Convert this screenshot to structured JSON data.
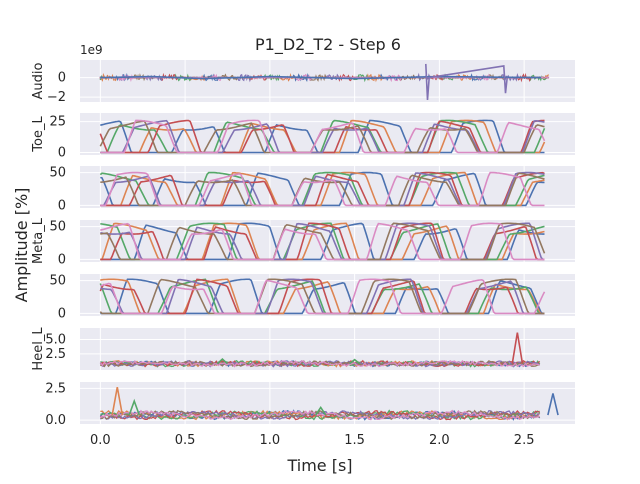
{
  "chart_data": {
    "type": "line",
    "title": "P1_D2_T2 - Step 6",
    "xlabel": "Time [s]",
    "ylabel": "Amplitude [%]",
    "x_ticks": [
      "0.0",
      "0.5",
      "1.0",
      "1.5",
      "2.0",
      "2.5"
    ],
    "xlim": [
      -0.12,
      2.8
    ],
    "grid": true,
    "palette": [
      "#4c72b0",
      "#dd8452",
      "#55a868",
      "#c44e52",
      "#8172b3",
      "#937860",
      "#da8bc3"
    ],
    "panels": [
      {
        "ylabel": "Audio",
        "offset_text": "1e9",
        "y_ticks": [
          0,
          -2
        ],
        "y_tick_labels": [
          "0",
          "−2"
        ],
        "ylim": [
          -2.5,
          1.8
        ],
        "kind": "audio",
        "series": [
          {
            "color": "#4c72b0",
            "values": [
              [
                0.0,
                0
              ],
              [
                0.3,
                0.1
              ],
              [
                0.6,
                -0.1
              ],
              [
                1.0,
                0.1
              ],
              [
                1.5,
                -0.1
              ],
              [
                2.0,
                0.1
              ],
              [
                2.6,
                0
              ]
            ]
          },
          {
            "color": "#8172b3",
            "values": [
              [
                1.92,
                1.4
              ],
              [
                1.93,
                -2.3
              ],
              [
                1.94,
                0
              ],
              [
                2.38,
                1.2
              ],
              [
                2.39,
                -1.6
              ],
              [
                2.4,
                0
              ]
            ]
          }
        ]
      },
      {
        "ylabel": "Toe_L",
        "y_ticks": [
          0,
          25
        ],
        "y_tick_labels": [
          "0",
          "25"
        ],
        "ylim": [
          -2,
          32
        ],
        "kind": "pressure",
        "peak": 26
      },
      {
        "ylabel": "",
        "y_ticks": [
          0,
          50
        ],
        "y_tick_labels": [
          "0",
          "50"
        ],
        "ylim": [
          -4,
          60
        ],
        "kind": "pressure",
        "peak": 50
      },
      {
        "ylabel": "Meta_L",
        "y_ticks": [
          0,
          50
        ],
        "y_tick_labels": [
          "0",
          "50"
        ],
        "ylim": [
          -4,
          60
        ],
        "kind": "pressure",
        "peak": 55
      },
      {
        "ylabel": "",
        "y_ticks": [
          0,
          50
        ],
        "y_tick_labels": [
          "0",
          "50"
        ],
        "ylim": [
          -4,
          60
        ],
        "kind": "pressure",
        "peak": 52
      },
      {
        "ylabel": "Heel_L",
        "y_ticks": [
          2.5,
          5.0
        ],
        "y_tick_labels": [
          "2.5",
          "5.0"
        ],
        "ylim": [
          -0.3,
          7.0
        ],
        "kind": "noise",
        "base": 0.8,
        "spikes": [
          [
            2.46,
            6.2,
            "#c44e52"
          ],
          [
            0.72,
            1.6,
            "#55a868"
          ],
          [
            1.5,
            1.5,
            "#55a868"
          ]
        ]
      },
      {
        "ylabel": "",
        "y_ticks": [
          0.0,
          2.5
        ],
        "y_tick_labels": [
          "0.0",
          "2.5"
        ],
        "ylim": [
          -0.3,
          3.0
        ],
        "kind": "noise",
        "base": 0.4,
        "spikes": [
          [
            0.1,
            2.6,
            "#dd8452"
          ],
          [
            0.2,
            1.5,
            "#55a868"
          ],
          [
            2.67,
            2.1,
            "#4c72b0"
          ],
          [
            1.3,
            1.0,
            "#55a868"
          ]
        ]
      }
    ]
  }
}
